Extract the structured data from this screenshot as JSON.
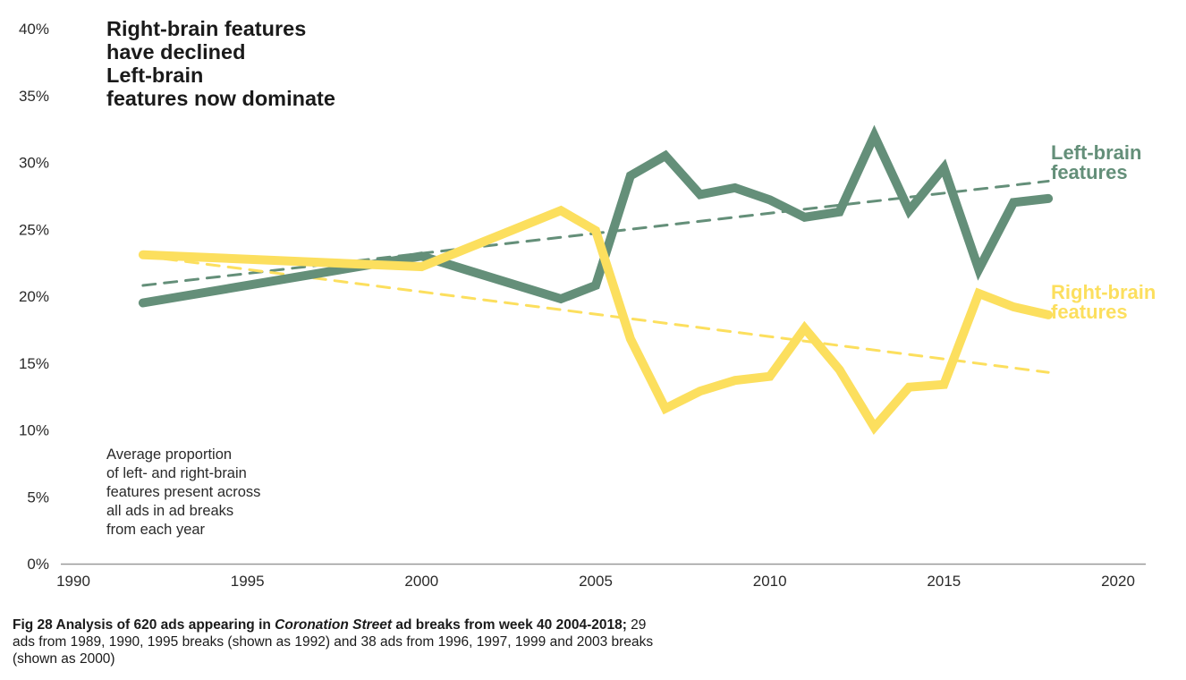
{
  "title": {
    "lines": [
      "Right-brain features",
      "have declined",
      "Left-brain",
      "features now dominate"
    ]
  },
  "note": {
    "lines": [
      "Average proportion",
      "of left- and right-brain",
      "features present across",
      "all ads in ad breaks",
      "from each year"
    ]
  },
  "legend": {
    "left": {
      "line1": "Left-brain",
      "line2": "features"
    },
    "right": {
      "line1": "Right-brain",
      "line2": "features"
    }
  },
  "caption": {
    "bold_prefix": "Fig 28 Analysis of 620 ads appearing in ",
    "italic": "Coronation Street",
    "bold_suffix": " ad breaks from week 40 2004-2018;",
    "rest": " 29 ads from 1989, 1990, 1995 breaks (shown as 1992) and 38 ads from 1996, 1997, 1999 and 2003 breaks (shown as 2000)"
  },
  "colors": {
    "left_brain": "#648f79",
    "right_brain": "#fcdf5e",
    "axis": "#9a9a9a"
  },
  "chart_data": {
    "type": "line",
    "title": "Right-brain features have declined Left-brain features now dominate",
    "xlabel": "",
    "ylabel": "",
    "xlim": [
      1990,
      2020
    ],
    "ylim": [
      0,
      40
    ],
    "x_ticks": [
      1990,
      1995,
      2000,
      2005,
      2010,
      2015,
      2020
    ],
    "y_ticks": [
      0,
      5,
      10,
      15,
      20,
      25,
      30,
      35,
      40
    ],
    "y_tick_labels": [
      "0%",
      "5%",
      "10%",
      "15%",
      "20%",
      "25%",
      "30%",
      "35%",
      "40%"
    ],
    "grid": false,
    "legend_placement": "right (inline labels)",
    "x": [
      1992,
      2000,
      2004,
      2005,
      2006,
      2007,
      2008,
      2009,
      2010,
      2011,
      2012,
      2013,
      2014,
      2015,
      2016,
      2017,
      2018
    ],
    "series": [
      {
        "name": "Left-brain features",
        "color": "#648f79",
        "values": [
          19.5,
          23.0,
          19.8,
          20.8,
          29.0,
          30.5,
          27.6,
          28.1,
          27.2,
          25.9,
          26.3,
          32.0,
          26.4,
          29.6,
          22.0,
          27.0,
          27.3
        ]
      },
      {
        "name": "Right-brain features",
        "color": "#fcdf5e",
        "values": [
          23.1,
          22.2,
          26.4,
          24.9,
          16.8,
          11.6,
          12.9,
          13.7,
          14.0,
          17.6,
          14.5,
          10.2,
          13.2,
          13.4,
          20.2,
          19.2,
          18.6
        ]
      }
    ],
    "trendlines": [
      {
        "name": "Left-brain trend",
        "color": "#648f79",
        "style": "dashed",
        "x": [
          1992,
          2018
        ],
        "values": [
          20.8,
          28.6
        ]
      },
      {
        "name": "Right-brain trend",
        "color": "#fcdf5e",
        "style": "dashed",
        "x": [
          1992,
          2018
        ],
        "values": [
          23.0,
          14.3
        ]
      }
    ]
  }
}
